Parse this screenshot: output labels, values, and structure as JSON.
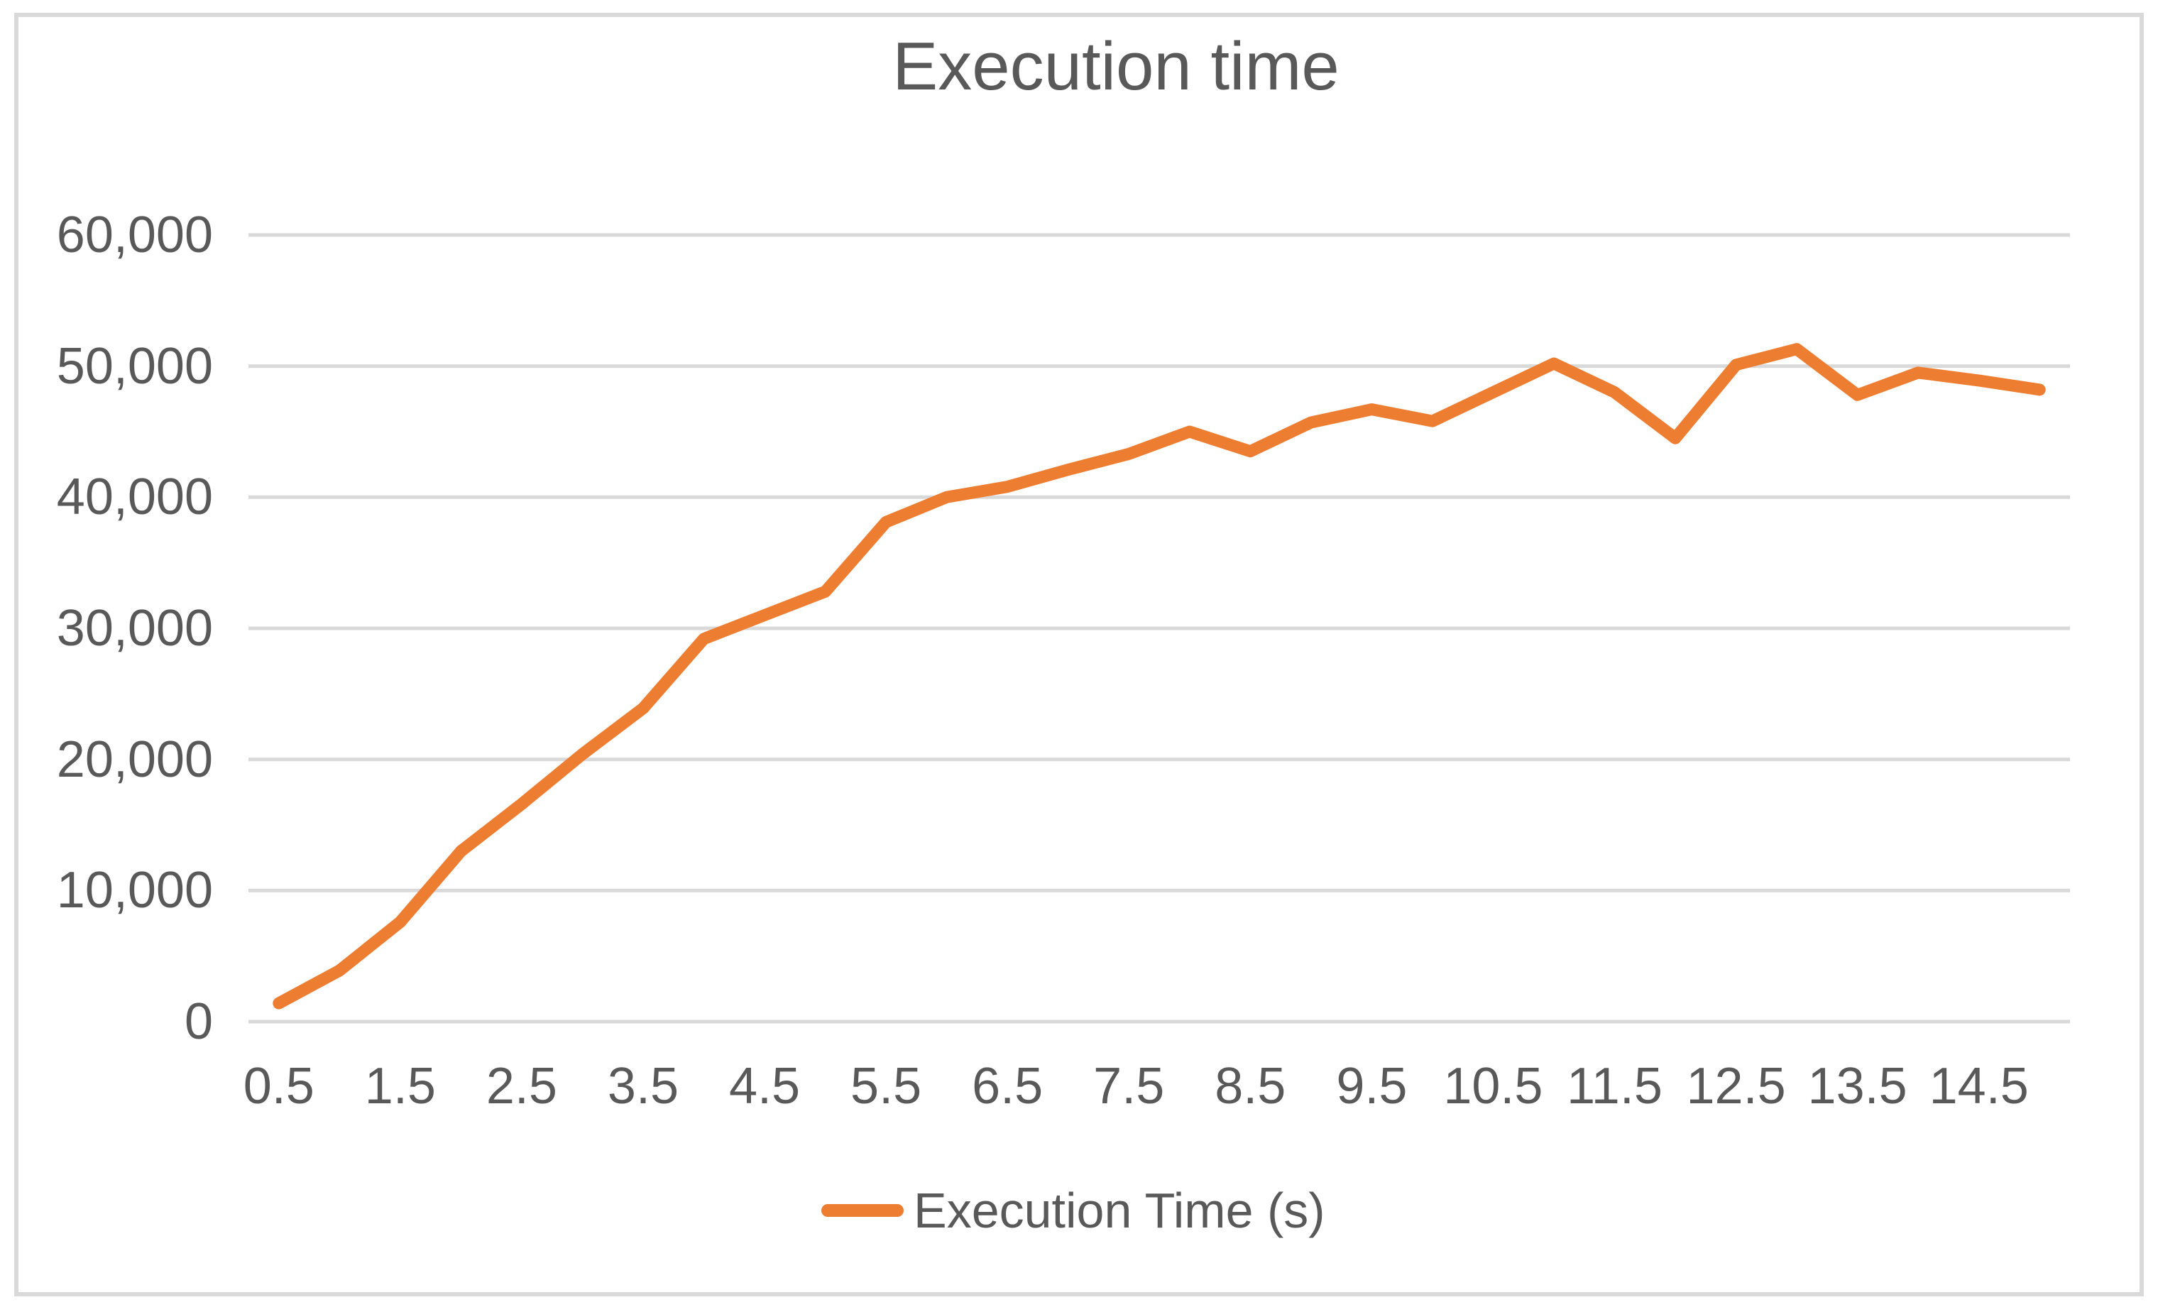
{
  "title": "Execution time",
  "colors": {
    "accent": "#ED7D31",
    "text": "#595959",
    "gridline": "#D9D9D9",
    "frame": "#D9D9D9"
  },
  "chart_data": {
    "type": "line",
    "title": "Execution time",
    "xlabel": "",
    "ylabel": "",
    "grid": "horizontal",
    "legend_position": "bottom",
    "legend": [
      "Execution Time (s)"
    ],
    "series_color": "#ED7D31",
    "line_width": 17,
    "ylim": [
      0,
      60000
    ],
    "y_ticks": [
      0,
      10000,
      20000,
      30000,
      40000,
      50000,
      60000
    ],
    "y_tick_labels": [
      "0",
      "10,000",
      "20,000",
      "30,000",
      "40,000",
      "50,000",
      "60,000"
    ],
    "x_tick_labels": [
      "0.5",
      "1.5",
      "2.5",
      "3.5",
      "4.5",
      "5.5",
      "6.5",
      "7.5",
      "8.5",
      "9.5",
      "10.5",
      "11.5",
      "12.5",
      "13.5",
      "14.5"
    ],
    "x": [
      0.5,
      1.0,
      1.5,
      2.0,
      2.5,
      3.0,
      3.5,
      4.0,
      4.5,
      5.0,
      5.5,
      6.0,
      6.5,
      7.0,
      7.5,
      8.0,
      8.5,
      9.0,
      9.5,
      10.0,
      10.5,
      11.0,
      11.5,
      12.0,
      12.5,
      13.0,
      13.5,
      14.0,
      14.5,
      15.0
    ],
    "values": [
      1400,
      3900,
      7600,
      13000,
      16600,
      20400,
      23900,
      29200,
      31000,
      32800,
      38100,
      40000,
      40800,
      42100,
      43300,
      45000,
      43500,
      45700,
      46700,
      45800,
      48000,
      50200,
      48000,
      44500,
      50100,
      51300,
      47800,
      49500,
      48900,
      48200
    ]
  }
}
